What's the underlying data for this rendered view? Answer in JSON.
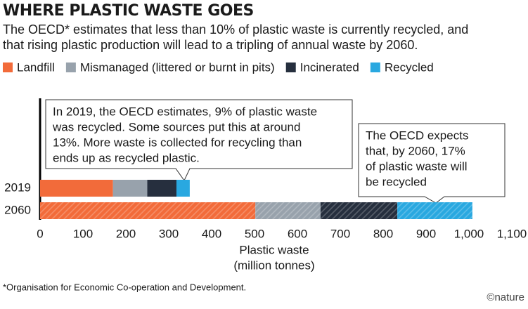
{
  "chart_data": {
    "type": "stacked-barh",
    "title": "WHERE PLASTIC WASTE GOES",
    "subtitle": [
      "The OECD* estimates that less than 10% of plastic waste is currently recycled, and",
      "that rising plastic production will lead to a tripling of annual waste by 2060."
    ],
    "categories": [
      "2019",
      "2060"
    ],
    "hatched": [
      false,
      true
    ],
    "series": [
      {
        "name": "Landfill",
        "color": "#f26b3a",
        "values": [
          170,
          502
        ]
      },
      {
        "name": "Mismanaged (littered or burnt in pits)",
        "color": "#98a2ac",
        "values": [
          80,
          152
        ]
      },
      {
        "name": "Incinerated",
        "color": "#262f3e",
        "values": [
          68,
          179
        ]
      },
      {
        "name": "Recycled",
        "color": "#29a8e0",
        "values": [
          31,
          175
        ]
      }
    ],
    "xlim": [
      0,
      1100
    ],
    "xticks": [
      0,
      100,
      200,
      300,
      400,
      500,
      600,
      700,
      800,
      900,
      {
        "value": 1000,
        "label": "1,000"
      },
      {
        "value": 1100,
        "label": "1,100"
      }
    ],
    "xlabel": [
      "Plastic waste",
      "(million tonnes)"
    ],
    "annotations": [
      {
        "lines": [
          "In 2019, the OECD estimates, 9% of plastic waste",
          "was recycled. Some sources put this at around",
          "13%. More waste is collected for recycling than",
          "ends up as recycled plastic."
        ]
      },
      {
        "lines": [
          "The OECD expects",
          "that, by 2060, 17%",
          "of plastic waste will",
          "be recycled"
        ]
      }
    ],
    "footnote": "*Organisation for Economic Co-operation and Development.",
    "source": "©nature"
  }
}
